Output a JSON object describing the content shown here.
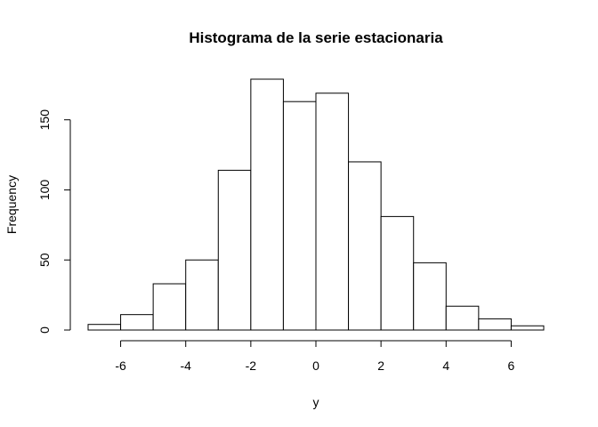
{
  "chart_data": {
    "type": "bar",
    "title": "Histograma de la serie estacionaria",
    "xlabel": "y",
    "ylabel": "Frequency",
    "bins": [
      {
        "from": -7,
        "to": -6,
        "count": 4
      },
      {
        "from": -6,
        "to": -5,
        "count": 11
      },
      {
        "from": -5,
        "to": -4,
        "count": 33
      },
      {
        "from": -4,
        "to": -3,
        "count": 50
      },
      {
        "from": -3,
        "to": -2,
        "count": 114
      },
      {
        "from": -2,
        "to": -1,
        "count": 179
      },
      {
        "from": -1,
        "to": 0,
        "count": 163
      },
      {
        "from": 0,
        "to": 1,
        "count": 169
      },
      {
        "from": 1,
        "to": 2,
        "count": 120
      },
      {
        "from": 2,
        "to": 3,
        "count": 81
      },
      {
        "from": 3,
        "to": 4,
        "count": 48
      },
      {
        "from": 4,
        "to": 5,
        "count": 17
      },
      {
        "from": 5,
        "to": 6,
        "count": 8
      },
      {
        "from": 6,
        "to": 7,
        "count": 3
      }
    ],
    "xlim": [
      -7,
      7
    ],
    "ylim": [
      0,
      179
    ],
    "xticks": [
      -6,
      -4,
      -2,
      0,
      2,
      4,
      6
    ],
    "yticks": [
      0,
      50,
      100,
      150
    ],
    "grid": false,
    "legend": "none"
  }
}
